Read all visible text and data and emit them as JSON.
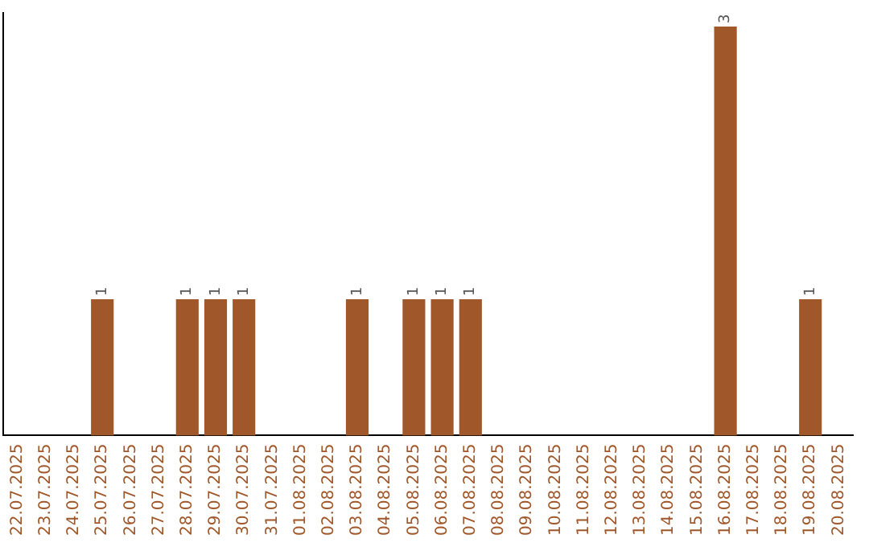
{
  "chart_data": {
    "type": "bar",
    "categories": [
      "22.07.2025",
      "23.07.2025",
      "24.07.2025",
      "25.07.2025",
      "26.07.2025",
      "27.07.2025",
      "28.07.2025",
      "29.07.2025",
      "30.07.2025",
      "31.07.2025",
      "01.08.2025",
      "02.08.2025",
      "03.08.2025",
      "04.08.2025",
      "05.08.2025",
      "06.08.2025",
      "07.08.2025",
      "08.08.2025",
      "09.08.2025",
      "10.08.2025",
      "11.08.2025",
      "12.08.2025",
      "13.08.2025",
      "14.08.2025",
      "15.08.2025",
      "16.08.2025",
      "17.08.2025",
      "18.08.2025",
      "19.08.2025",
      "20.08.2025"
    ],
    "values": [
      0,
      0,
      0,
      1,
      0,
      0,
      1,
      1,
      1,
      0,
      0,
      0,
      1,
      0,
      1,
      1,
      1,
      0,
      0,
      0,
      0,
      0,
      0,
      0,
      0,
      3,
      0,
      0,
      1,
      0
    ],
    "value_labels": [
      null,
      null,
      null,
      "1",
      null,
      null,
      "1",
      "1",
      "1",
      null,
      null,
      null,
      "1",
      null,
      "1",
      "1",
      "1",
      null,
      null,
      null,
      null,
      null,
      null,
      null,
      null,
      "3",
      null,
      null,
      "1",
      null
    ],
    "color": "#a0572a",
    "ylim": [
      0,
      3.1
    ],
    "grid": false,
    "legend": false,
    "tick_labels": "x"
  }
}
